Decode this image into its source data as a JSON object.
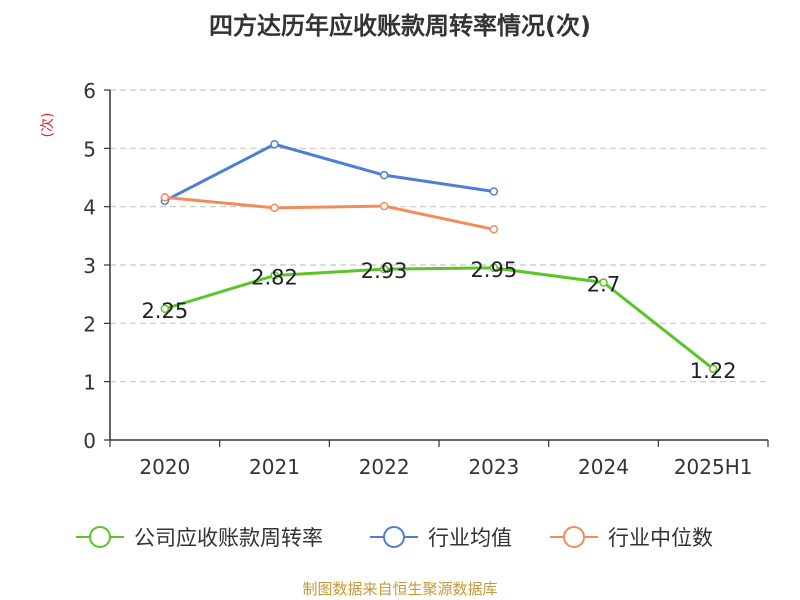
{
  "title": "四方达历年应收账款周转率情况(次)",
  "source": "制图数据来自恒生聚源数据库",
  "chart_data": {
    "type": "line",
    "title": "四方达历年应收账款周转率情况(次)",
    "ylabel": "(次)",
    "xlabel": "",
    "categories": [
      "2020",
      "2021",
      "2022",
      "2023",
      "2024",
      "2025H1"
    ],
    "ylim": [
      0,
      6
    ],
    "yticks": [
      "0",
      "1",
      "2",
      "3",
      "4",
      "5",
      "6"
    ],
    "grid": true,
    "legend_position": "bottom",
    "series": [
      {
        "name": "公司应收账款周转率",
        "color": "#5ac526",
        "values": [
          2.25,
          2.82,
          2.93,
          2.95,
          2.7,
          1.22
        ],
        "labels": [
          "2.25",
          "2.82",
          "2.93",
          "2.95",
          "2.7",
          "1.22"
        ]
      },
      {
        "name": "行业均值",
        "color": "#4e7fd8",
        "values": [
          4.1,
          5.07,
          4.54,
          4.26,
          null,
          null
        ]
      },
      {
        "name": "行业中位数",
        "color": "#f28c5a",
        "values": [
          4.16,
          3.98,
          4.01,
          3.61,
          null,
          null
        ]
      }
    ]
  }
}
